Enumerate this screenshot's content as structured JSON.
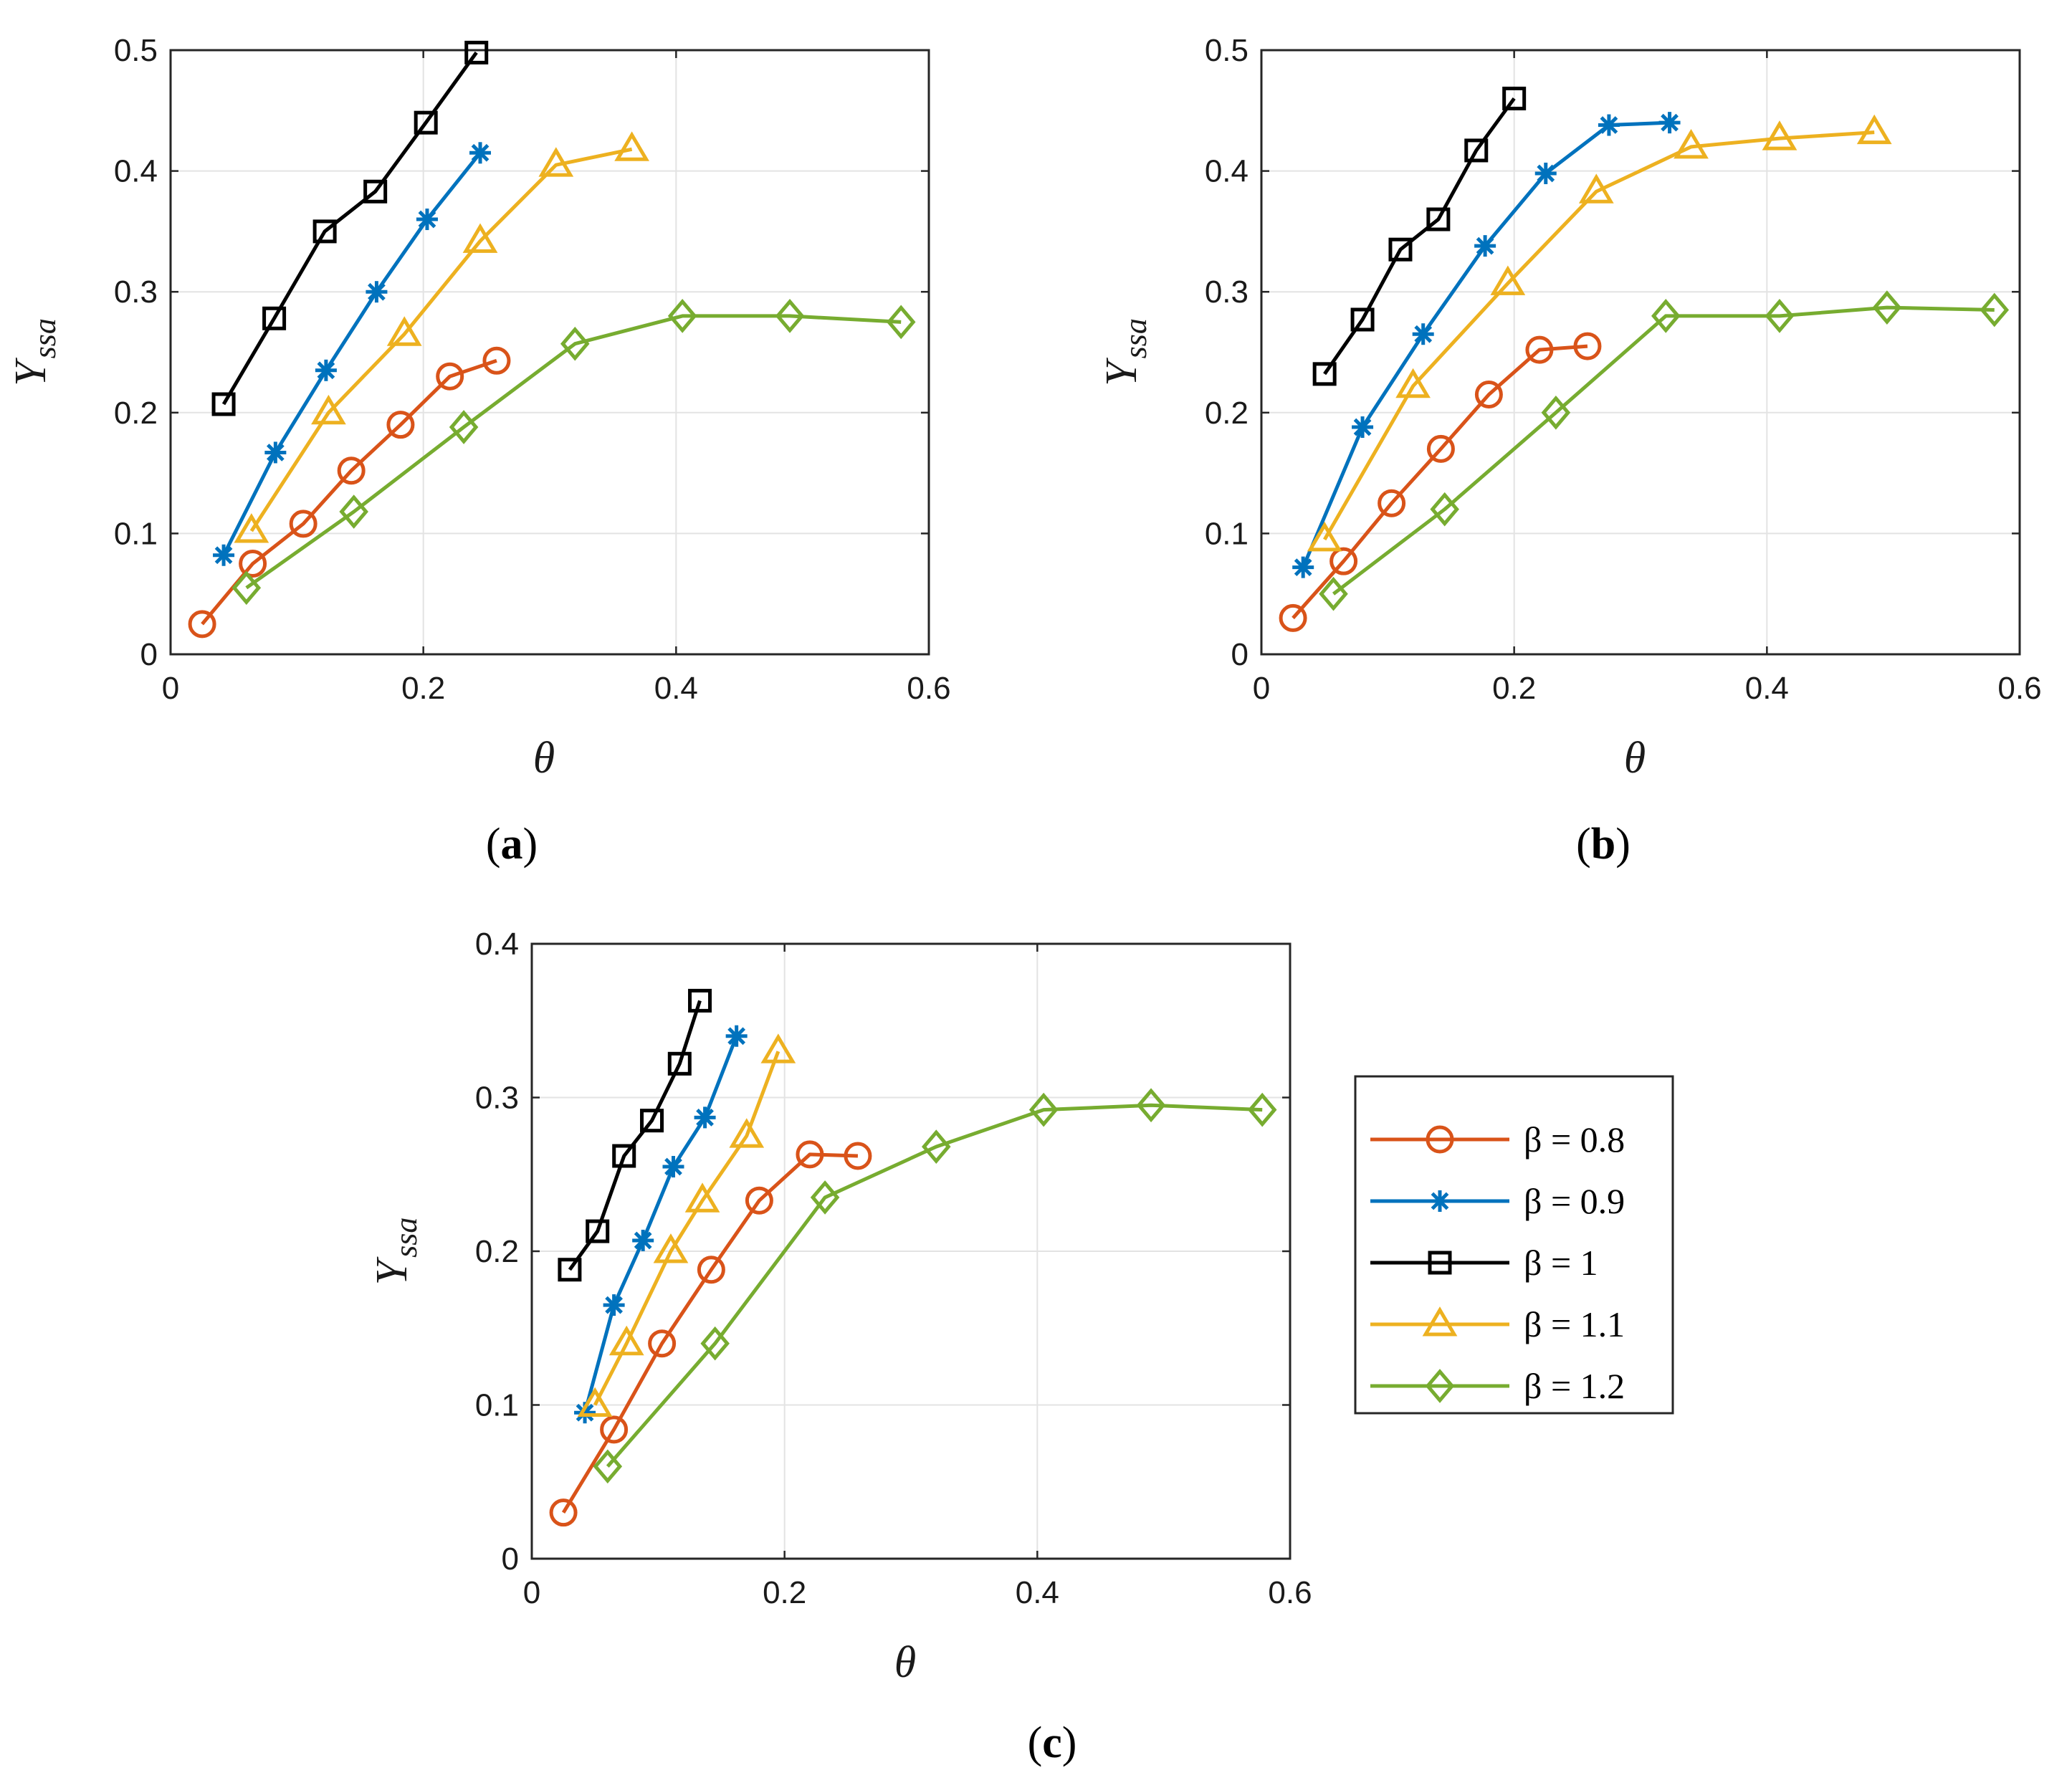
{
  "chart_data": [
    {
      "panel": "a",
      "type": "line",
      "caption": "(a)",
      "xlabel": "θ",
      "ylabel": "Y",
      "ylabel_sub": "ssa",
      "xlim": [
        0,
        0.6
      ],
      "ylim": [
        0,
        0.5
      ],
      "xticks": [
        0,
        0.2,
        0.4,
        0.6
      ],
      "yticks": [
        0,
        0.1,
        0.2,
        0.3,
        0.4,
        0.5
      ],
      "grid": true,
      "series": [
        {
          "name": "β = 0.8",
          "x": [
            0.025,
            0.065,
            0.105,
            0.143,
            0.182,
            0.221,
            0.258
          ],
          "y": [
            0.025,
            0.075,
            0.108,
            0.152,
            0.19,
            0.23,
            0.243
          ]
        },
        {
          "name": "β = 0.9",
          "x": [
            0.042,
            0.083,
            0.123,
            0.163,
            0.203,
            0.245
          ],
          "y": [
            0.082,
            0.167,
            0.235,
            0.3,
            0.36,
            0.415
          ]
        },
        {
          "name": "β = 1",
          "x": [
            0.042,
            0.082,
            0.122,
            0.162,
            0.202,
            0.242
          ],
          "y": [
            0.207,
            0.278,
            0.35,
            0.383,
            0.44,
            0.498
          ]
        },
        {
          "name": "β = 1.1",
          "x": [
            0.064,
            0.125,
            0.185,
            0.245,
            0.305,
            0.365
          ],
          "y": [
            0.102,
            0.2,
            0.265,
            0.342,
            0.405,
            0.418
          ]
        },
        {
          "name": "β = 1.2",
          "x": [
            0.06,
            0.145,
            0.232,
            0.32,
            0.405,
            0.49,
            0.578
          ],
          "y": [
            0.055,
            0.118,
            0.188,
            0.257,
            0.28,
            0.28,
            0.275
          ]
        }
      ]
    },
    {
      "panel": "b",
      "type": "line",
      "caption": "(b)",
      "xlabel": "θ",
      "ylabel": "Y",
      "ylabel_sub": "ssa",
      "xlim": [
        0,
        0.6
      ],
      "ylim": [
        0,
        0.5
      ],
      "xticks": [
        0,
        0.2,
        0.4,
        0.6
      ],
      "yticks": [
        0,
        0.1,
        0.2,
        0.3,
        0.4,
        0.5
      ],
      "grid": true,
      "series": [
        {
          "name": "β = 0.8",
          "x": [
            0.025,
            0.065,
            0.103,
            0.142,
            0.18,
            0.22,
            0.258
          ],
          "y": [
            0.03,
            0.077,
            0.125,
            0.17,
            0.215,
            0.252,
            0.255
          ]
        },
        {
          "name": "β = 0.9",
          "x": [
            0.033,
            0.08,
            0.128,
            0.177,
            0.225,
            0.275,
            0.323
          ],
          "y": [
            0.072,
            0.188,
            0.265,
            0.338,
            0.398,
            0.438,
            0.44
          ]
        },
        {
          "name": "β = 1",
          "x": [
            0.05,
            0.08,
            0.11,
            0.14,
            0.17,
            0.2
          ],
          "y": [
            0.232,
            0.277,
            0.335,
            0.36,
            0.417,
            0.46
          ]
        },
        {
          "name": "β = 1.1",
          "x": [
            0.05,
            0.12,
            0.195,
            0.265,
            0.34,
            0.41,
            0.485
          ],
          "y": [
            0.095,
            0.222,
            0.307,
            0.383,
            0.42,
            0.427,
            0.432
          ]
        },
        {
          "name": "β = 1.2",
          "x": [
            0.057,
            0.145,
            0.233,
            0.32,
            0.41,
            0.495,
            0.58
          ],
          "y": [
            0.05,
            0.12,
            0.2,
            0.28,
            0.28,
            0.287,
            0.285
          ]
        }
      ]
    },
    {
      "panel": "c",
      "type": "line",
      "caption": "(c)",
      "xlabel": "θ",
      "ylabel": "Y",
      "ylabel_sub": "ssa",
      "xlim": [
        0,
        0.6
      ],
      "ylim": [
        0,
        0.4
      ],
      "xticks": [
        0,
        0.2,
        0.4,
        0.6
      ],
      "yticks": [
        0,
        0.1,
        0.2,
        0.3,
        0.4
      ],
      "grid": true,
      "legend_position": "right",
      "series": [
        {
          "name": "β = 0.8",
          "x": [
            0.025,
            0.065,
            0.103,
            0.142,
            0.18,
            0.22,
            0.258
          ],
          "y": [
            0.03,
            0.084,
            0.14,
            0.188,
            0.233,
            0.263,
            0.262
          ]
        },
        {
          "name": "β = 0.9",
          "x": [
            0.042,
            0.065,
            0.088,
            0.112,
            0.137,
            0.162
          ],
          "y": [
            0.095,
            0.165,
            0.207,
            0.255,
            0.287,
            0.34
          ]
        },
        {
          "name": "β = 1",
          "x": [
            0.03,
            0.052,
            0.073,
            0.095,
            0.117,
            0.133
          ],
          "y": [
            0.188,
            0.213,
            0.262,
            0.285,
            0.322,
            0.363
          ]
        },
        {
          "name": "β = 1.1",
          "x": [
            0.05,
            0.075,
            0.11,
            0.135,
            0.17,
            0.195
          ],
          "y": [
            0.1,
            0.14,
            0.2,
            0.233,
            0.275,
            0.33
          ]
        },
        {
          "name": "β = 1.2",
          "x": [
            0.06,
            0.145,
            0.232,
            0.32,
            0.405,
            0.49,
            0.578
          ],
          "y": [
            0.06,
            0.14,
            0.235,
            0.268,
            0.292,
            0.295,
            0.292
          ]
        }
      ]
    }
  ],
  "legend": {
    "items": [
      {
        "label": "β = 0.8",
        "color": "#D95319",
        "marker": "circle"
      },
      {
        "label": "β = 0.9",
        "color": "#0072BD",
        "marker": "asterisk"
      },
      {
        "label": "β = 1",
        "color": "#000000",
        "marker": "square"
      },
      {
        "label": "β = 1.1",
        "color": "#EDB120",
        "marker": "triangle"
      },
      {
        "label": "β = 1.2",
        "color": "#77AC30",
        "marker": "diamond"
      }
    ]
  }
}
